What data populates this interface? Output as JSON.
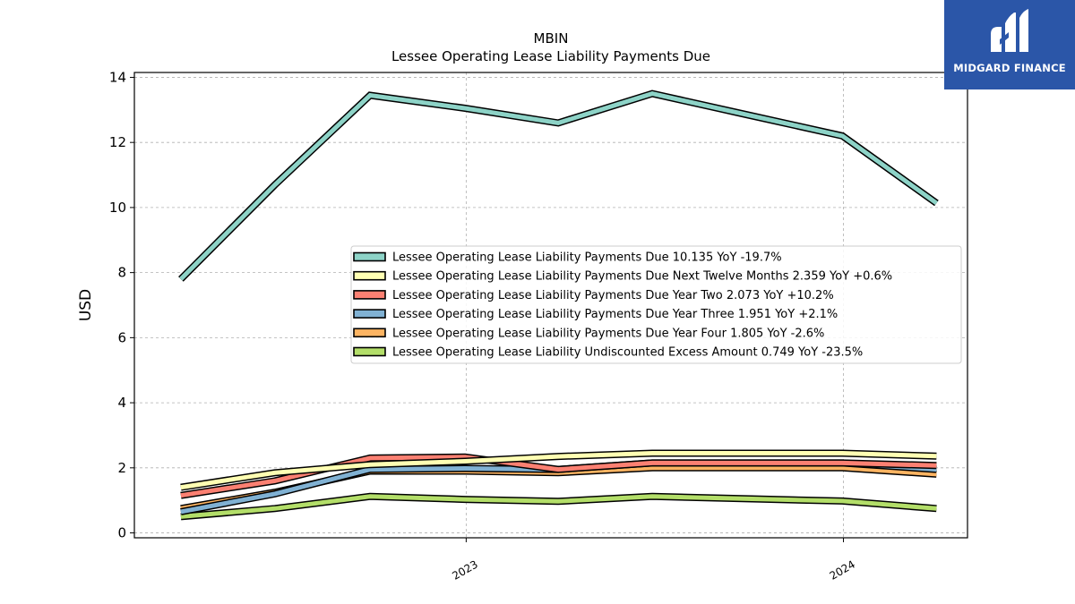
{
  "logo": {
    "text": "MIDGARD FINANCE",
    "icon": "midgard-m-logo-icon"
  },
  "chart_data": {
    "type": "line",
    "title": "MBIN",
    "subtitle": "Lessee Operating Lease Liability Payments Due",
    "ylabel": "USD",
    "xlabel": "",
    "ylim": [
      -0.15,
      14.15
    ],
    "yticks": [
      0,
      2,
      4,
      6,
      8,
      10,
      12,
      14
    ],
    "x_dates": [
      "2022-03-31",
      "2022-06-30",
      "2022-09-30",
      "2022-12-31",
      "2023-03-31",
      "2023-06-30",
      "2023-09-30",
      "2023-12-31",
      "2024-03-31"
    ],
    "xlim": [
      "2022-02-14",
      "2024-04-30"
    ],
    "xticks": [
      {
        "date": "2023-01-01",
        "label": "2023"
      },
      {
        "date": "2024-01-01",
        "label": "2024"
      }
    ],
    "grid": true,
    "legend_position": "center-right",
    "series": [
      {
        "name": "Lessee Operating Lease Liability Payments Due",
        "legend": "Lessee Operating Lease Liability Payments Due  10.135 YoY -19.7%",
        "color": "#8dd3c7",
        "values": [
          7.8,
          10.7,
          13.45,
          13.05,
          12.6,
          13.5,
          12.85,
          12.2,
          10.135
        ]
      },
      {
        "name": "Lessee Operating Lease Liability Payments Due Next Twelve Months",
        "legend": "Lessee Operating Lease Liability Payments Due Next Twelve Months  2.359 YoY +0.6%",
        "color": "#ffffb3",
        "values": [
          1.4,
          1.85,
          2.1,
          2.2,
          2.35,
          2.45,
          2.45,
          2.45,
          2.359
        ]
      },
      {
        "name": "Lessee Operating Lease Liability Payments Due Year Two",
        "legend": "Lessee Operating Lease Liability Payments Due Year Two  2.073 YoY +10.2%",
        "color": "#fb8072",
        "values": [
          1.15,
          1.6,
          2.3,
          2.33,
          1.95,
          2.15,
          2.15,
          2.15,
          2.073
        ]
      },
      {
        "name": "Lessee Operating Lease Liability Payments Due Year Three",
        "legend": "Lessee Operating Lease Liability Payments Due Year Three  1.951 YoY +2.1%",
        "color": "#80b1d3",
        "values": [
          0.65,
          1.2,
          1.95,
          1.98,
          1.95,
          2.15,
          2.15,
          2.15,
          1.951
        ]
      },
      {
        "name": "Lessee Operating Lease Liability Payments Due Year Four",
        "legend": "Lessee Operating Lease Liability Payments Due Year Four  1.805 YoY -2.6%",
        "color": "#fdb462",
        "values": [
          0.75,
          1.25,
          1.9,
          1.9,
          1.85,
          2.0,
          2.0,
          2.0,
          1.805
        ]
      },
      {
        "name": "Lessee Operating Lease Liability Undiscounted Excess Amount",
        "legend": "Lessee Operating Lease Liability Undiscounted Excess Amount  0.749 YoY -23.5%",
        "color": "#b3de69",
        "values": [
          0.5,
          0.75,
          1.12,
          1.03,
          0.97,
          1.12,
          1.05,
          0.98,
          0.749
        ]
      }
    ]
  }
}
